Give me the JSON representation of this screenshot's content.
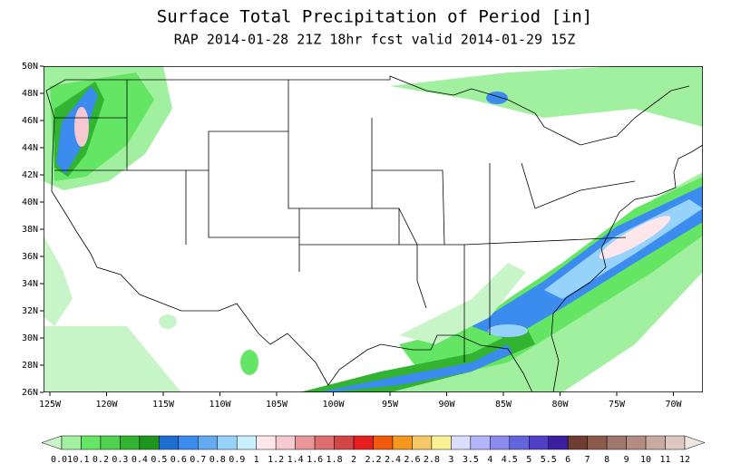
{
  "header": {
    "title": "Surface Total Precipitation of Period [in]",
    "subtitle": "RAP 2014-01-28 21Z 18hr fcst valid 2014-01-29 15Z"
  },
  "map": {
    "lat_labels": [
      "50N",
      "48N",
      "46N",
      "44N",
      "42N",
      "40N",
      "38N",
      "36N",
      "34N",
      "32N",
      "30N",
      "28N",
      "26N"
    ],
    "lon_labels": [
      "125W",
      "120W",
      "115W",
      "110W",
      "105W",
      "100W",
      "95W",
      "90W",
      "85W",
      "80W",
      "75W",
      "70W"
    ]
  },
  "colorbar": {
    "labels": [
      "0.01",
      "0.1",
      "0.2",
      "0.3",
      "0.4",
      "0.5",
      "0.6",
      "0.7",
      "0.8",
      "0.9",
      "1",
      "1.2",
      "1.4",
      "1.6",
      "1.8",
      "2",
      "2.2",
      "2.4",
      "2.6",
      "2.8",
      "3",
      "3.5",
      "4",
      "4.5",
      "5",
      "5.5",
      "6",
      "7",
      "8",
      "9",
      "10",
      "11",
      "12"
    ],
    "colors": [
      "#c8f5c8",
      "#a0f0a0",
      "#64e664",
      "#50d250",
      "#32b432",
      "#1e961e",
      "#1e6ed2",
      "#3c8cf0",
      "#64aaf0",
      "#96d2fa",
      "#c8f0ff",
      "#ffe6eb",
      "#f5c8d2",
      "#e69696",
      "#dc6e6e",
      "#d24646",
      "#e61e1e",
      "#f05a0a",
      "#f5961e",
      "#f5c864",
      "#faf096",
      "#dcdcff",
      "#b4b4fa",
      "#8c8cf0",
      "#6464dc",
      "#5040c8",
      "#3c1ea0",
      "#6e3c32",
      "#8c5a4b",
      "#a0786e",
      "#b48c82",
      "#c8aaa0",
      "#dcc8c0",
      "#f0e6e1"
    ]
  }
}
